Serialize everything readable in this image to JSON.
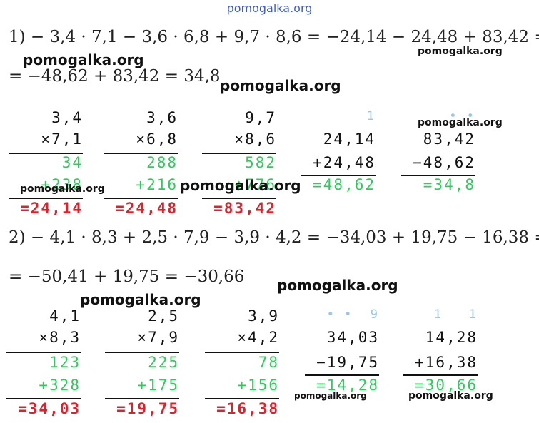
{
  "header": {
    "site": "pomogalka.org"
  },
  "problems": [
    {
      "equation": [
        "1) − 3,4 · 7,1 − 3,6 · 6,8 + 9,7 · 8,6 = −24,14 − 24,48 + 83,42 =",
        "= −48,62 + 83,42 = 34,8"
      ],
      "columns": [
        {
          "rows": [
            "3,4",
            "×7,1",
            "34",
            "+238",
            "=24,14"
          ]
        },
        {
          "rows": [
            "3,6",
            "×6,8",
            "288",
            "+216",
            "=24,48"
          ]
        },
        {
          "rows": [
            "9,7",
            "×8,6",
            "582",
            "+776",
            "=83,42"
          ]
        },
        {
          "carry": "1",
          "rows": [
            "24,14",
            "+24,48",
            "=48,62"
          ]
        },
        {
          "carry": "• •",
          "rows": [
            "83,42",
            "−48,62",
            "=34,8"
          ]
        }
      ]
    },
    {
      "equation": [
        "2) − 4,1 · 8,3 + 2,5 · 7,9 − 3,9 · 4,2 = −34,03 + 19,75 − 16,38 =",
        "= −50,41 + 19,75 = −30,66"
      ],
      "columns": [
        {
          "rows": [
            "4,1",
            "×8,3",
            "123",
            "+328",
            "=34,03"
          ]
        },
        {
          "rows": [
            "2,5",
            "×7,9",
            "225",
            "+175",
            "=19,75"
          ]
        },
        {
          "rows": [
            "3,9",
            "×4,2",
            "78",
            "+156",
            "=16,38"
          ]
        },
        {
          "carry": "• •  9",
          "rows": [
            "34,03",
            "−19,75",
            "=14,28"
          ]
        },
        {
          "carry": "1   1",
          "rows": [
            "14,28",
            "+16,38",
            "=30,66"
          ]
        }
      ]
    }
  ],
  "watermarks": [
    "pomogalka.org",
    "pomogalka.org",
    "pomogalka.org",
    "pomogalka.org",
    "pomogalka.org",
    "pomogalka.org",
    "pomogalka.org",
    "pomogalka.org",
    "pomogalka.org",
    "pomogalka.org"
  ]
}
